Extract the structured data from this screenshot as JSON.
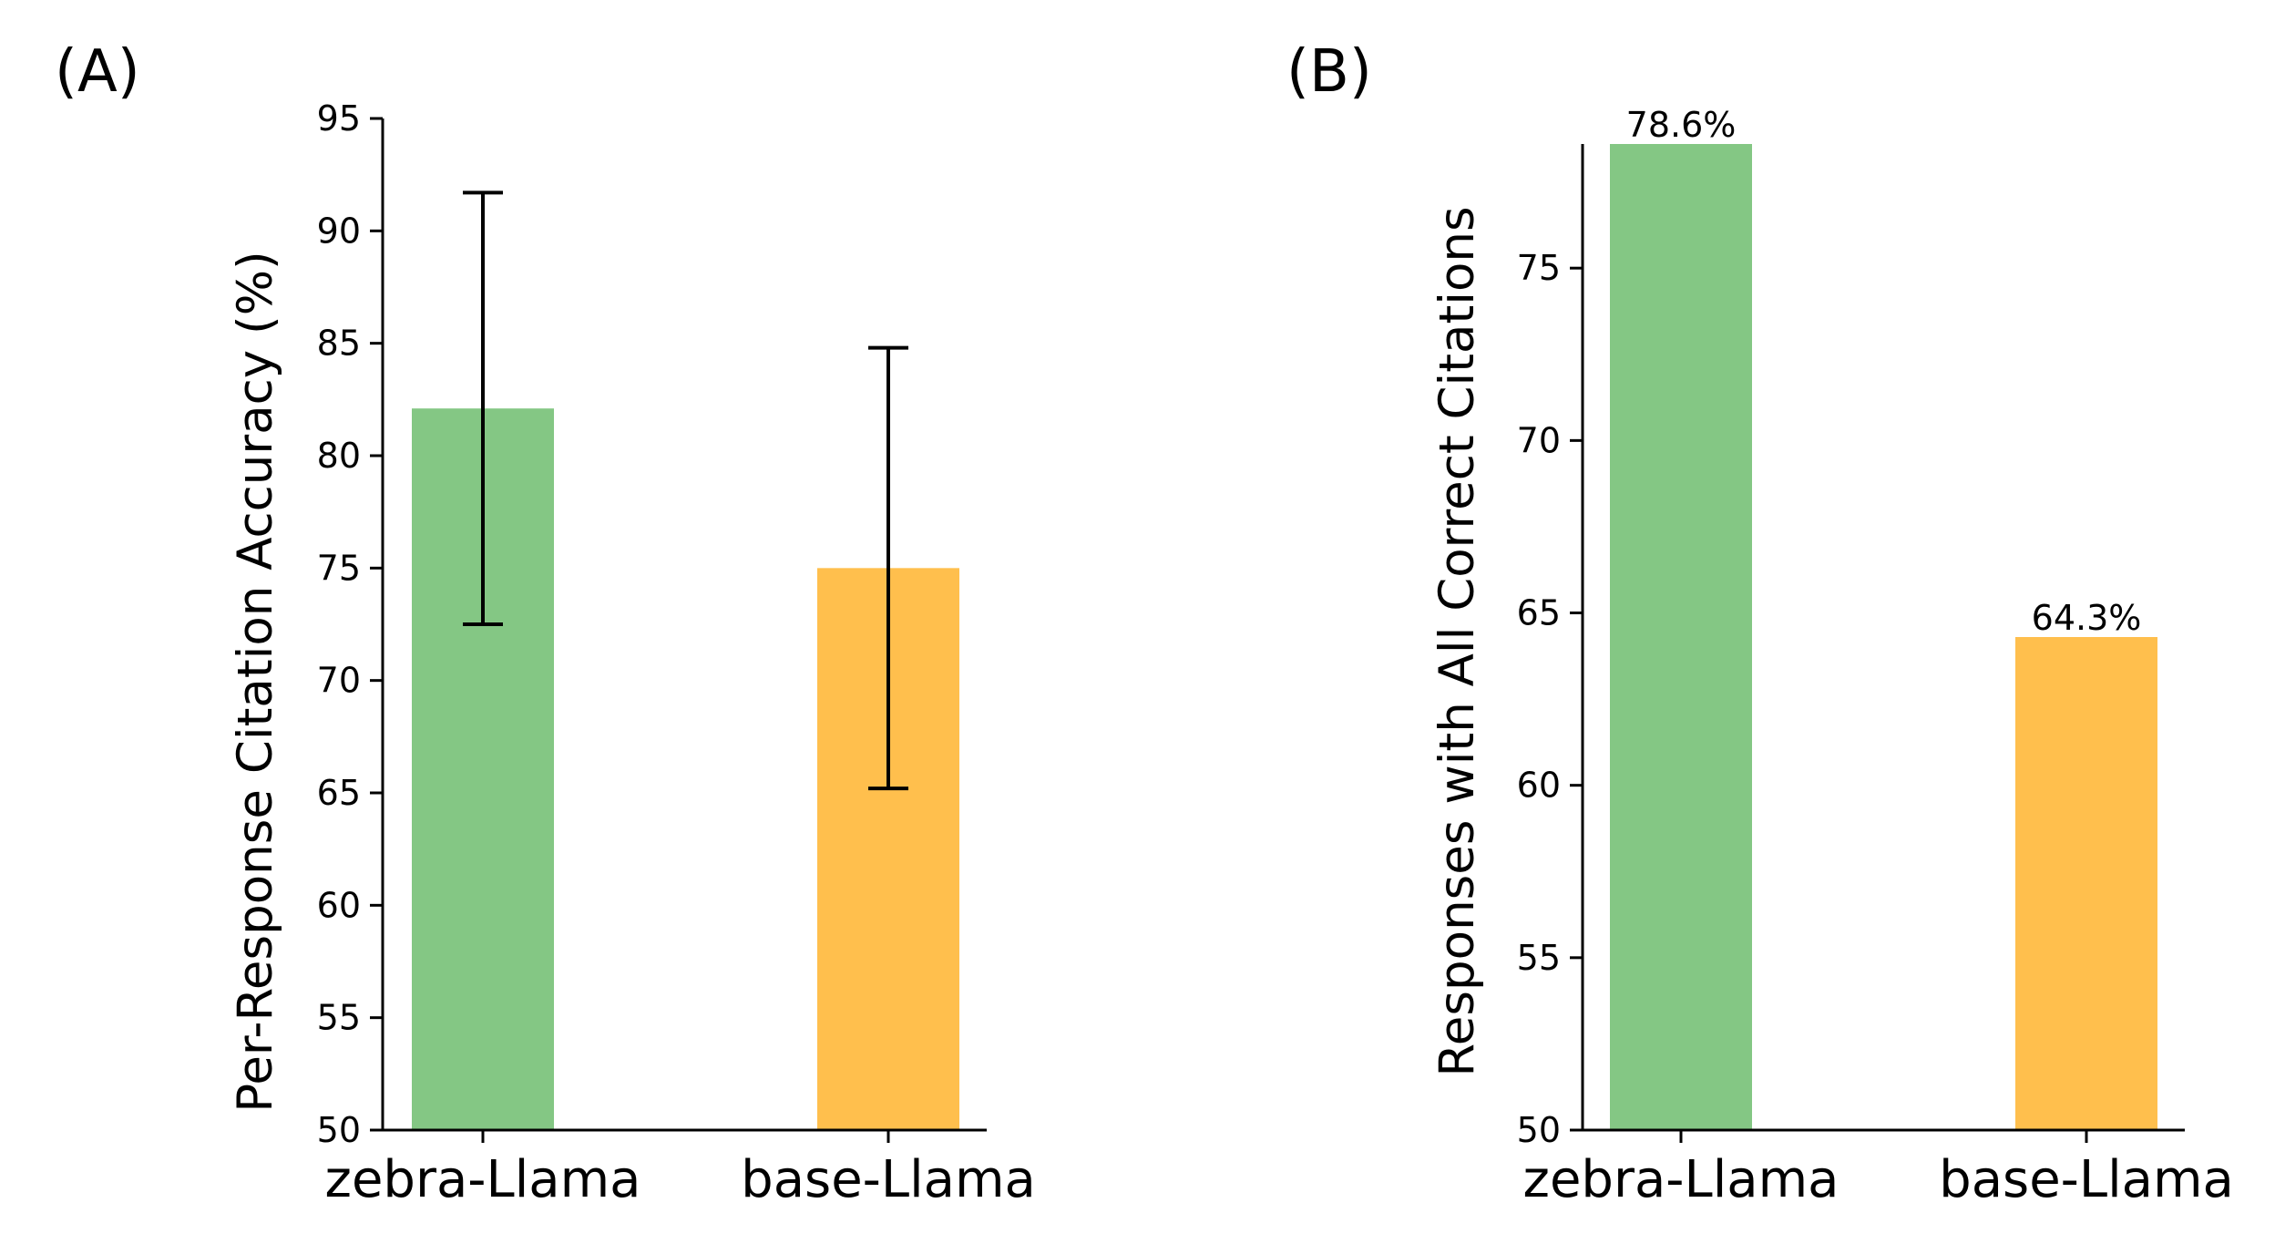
{
  "chart_data": [
    {
      "panel_label": "(A)",
      "type": "bar",
      "title": "",
      "xlabel": "",
      "ylabel": "Per-Response Citation Accuracy (%)",
      "categories": [
        "zebra-Llama",
        "base-Llama"
      ],
      "values": [
        82.1,
        75.0
      ],
      "error_low": [
        72.5,
        65.2
      ],
      "error_high": [
        91.7,
        84.8
      ],
      "colors": [
        "#84c784",
        "#ffbf4d"
      ],
      "ylim": [
        50,
        95
      ],
      "yticks": [
        "50",
        "55",
        "60",
        "65",
        "70",
        "75",
        "80",
        "85",
        "90",
        "95"
      ],
      "grid": false
    },
    {
      "panel_label": "(B)",
      "type": "bar",
      "title": "",
      "xlabel": "",
      "ylabel": "Responses with All Correct Citations",
      "categories": [
        "zebra-Llama",
        "base-Llama"
      ],
      "values": [
        78.6,
        64.3
      ],
      "data_labels": [
        "78.6%",
        "64.3%"
      ],
      "colors": [
        "#84c784",
        "#ffbf4d"
      ],
      "ylim": [
        50,
        78.6
      ],
      "yticks": [
        "50",
        "55",
        "60",
        "65",
        "70",
        "75"
      ],
      "grid": false
    }
  ]
}
